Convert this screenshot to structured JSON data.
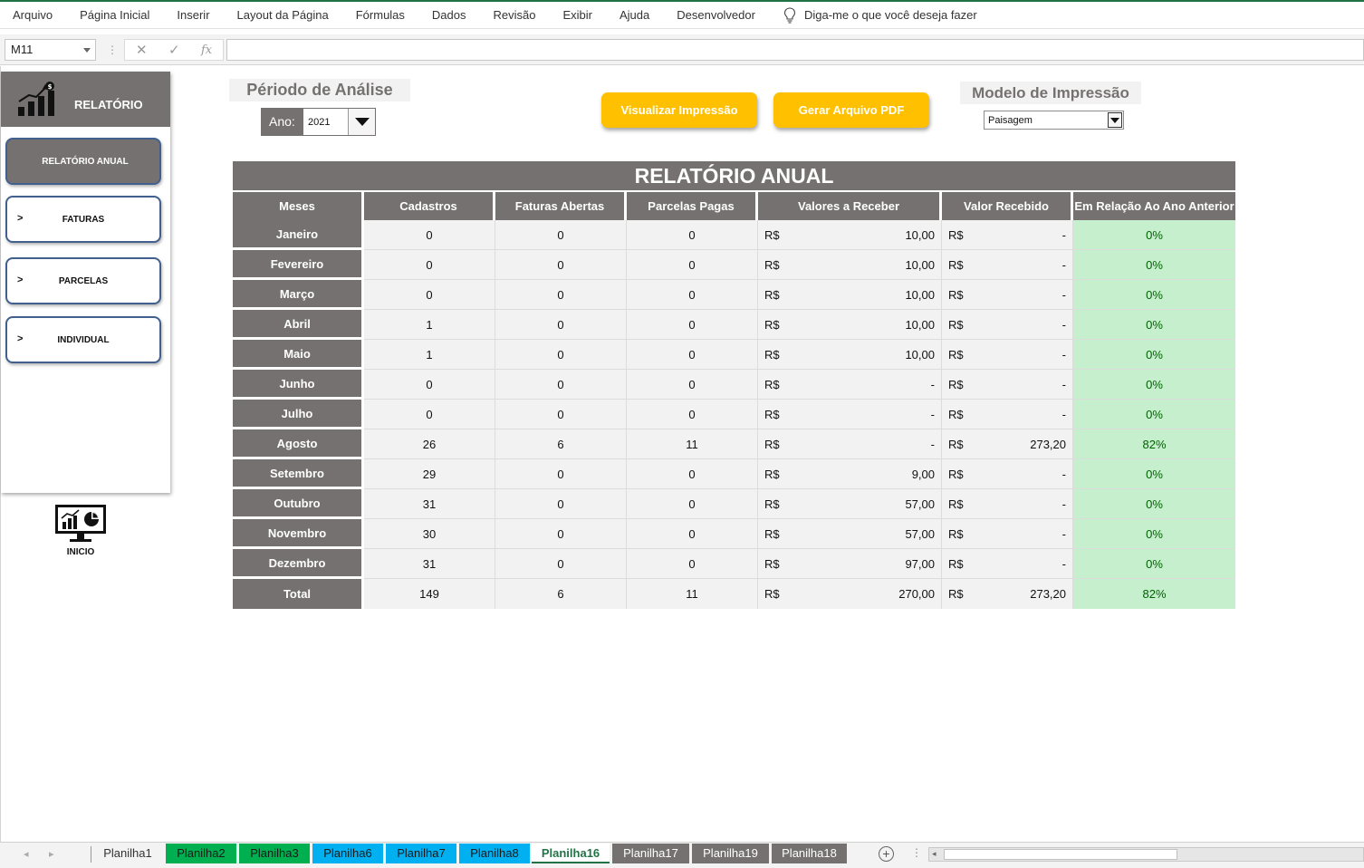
{
  "ribbon": {
    "tabs": [
      "Arquivo",
      "Página Inicial",
      "Inserir",
      "Layout da Página",
      "Fórmulas",
      "Dados",
      "Revisão",
      "Exibir",
      "Ajuda",
      "Desenvolvedor"
    ],
    "tell_me": "Diga-me o que você deseja fazer"
  },
  "formula_bar": {
    "name_box": "M11",
    "fx": "fx",
    "value": ""
  },
  "menu": {
    "header": "RELATÓRIO",
    "items": [
      {
        "label": "RELATÓRIO ANUAL",
        "arrow": ""
      },
      {
        "label": "FATURAS",
        "arrow": ">"
      },
      {
        "label": "PARCELAS",
        "arrow": ">"
      },
      {
        "label": "INDIVIDUAL",
        "arrow": ">"
      }
    ],
    "inicio": "INICIO"
  },
  "controls": {
    "period_title": "Périodo de Análise",
    "ano_label": "Ano:",
    "ano_value": "2021",
    "btn_preview": "Visualizar Impressão",
    "btn_pdf": "Gerar Arquivo PDF",
    "model_title": "Modelo de Impressão",
    "model_value": "Paisagem"
  },
  "report": {
    "title": "RELATÓRIO ANUAL",
    "headers": [
      "Meses",
      "Cadastros",
      "Faturas Abertas",
      "Parcelas Pagas",
      "Valores a Receber",
      "Valor Recebido",
      "Em Relação Ao Ano Anterior"
    ],
    "currency": "R$",
    "rows": [
      {
        "mes": "Janeiro",
        "cadastros": "0",
        "faturas": "0",
        "parcelas": "0",
        "receber": "10,00",
        "recebido": "-",
        "rel": "0%"
      },
      {
        "mes": "Fevereiro",
        "cadastros": "0",
        "faturas": "0",
        "parcelas": "0",
        "receber": "10,00",
        "recebido": "-",
        "rel": "0%"
      },
      {
        "mes": "Março",
        "cadastros": "0",
        "faturas": "0",
        "parcelas": "0",
        "receber": "10,00",
        "recebido": "-",
        "rel": "0%"
      },
      {
        "mes": "Abril",
        "cadastros": "1",
        "faturas": "0",
        "parcelas": "0",
        "receber": "10,00",
        "recebido": "-",
        "rel": "0%"
      },
      {
        "mes": "Maio",
        "cadastros": "1",
        "faturas": "0",
        "parcelas": "0",
        "receber": "10,00",
        "recebido": "-",
        "rel": "0%"
      },
      {
        "mes": "Junho",
        "cadastros": "0",
        "faturas": "0",
        "parcelas": "0",
        "receber": "-",
        "recebido": "-",
        "rel": "0%"
      },
      {
        "mes": "Julho",
        "cadastros": "0",
        "faturas": "0",
        "parcelas": "0",
        "receber": "-",
        "recebido": "-",
        "rel": "0%"
      },
      {
        "mes": "Agosto",
        "cadastros": "26",
        "faturas": "6",
        "parcelas": "11",
        "receber": "-",
        "recebido": "273,20",
        "rel": "82%"
      },
      {
        "mes": "Setembro",
        "cadastros": "29",
        "faturas": "0",
        "parcelas": "0",
        "receber": "9,00",
        "recebido": "-",
        "rel": "0%"
      },
      {
        "mes": "Outubro",
        "cadastros": "31",
        "faturas": "0",
        "parcelas": "0",
        "receber": "57,00",
        "recebido": "-",
        "rel": "0%"
      },
      {
        "mes": "Novembro",
        "cadastros": "30",
        "faturas": "0",
        "parcelas": "0",
        "receber": "57,00",
        "recebido": "-",
        "rel": "0%"
      },
      {
        "mes": "Dezembro",
        "cadastros": "31",
        "faturas": "0",
        "parcelas": "0",
        "receber": "97,00",
        "recebido": "-",
        "rel": "0%"
      },
      {
        "mes": "Total",
        "cadastros": "149",
        "faturas": "6",
        "parcelas": "11",
        "receber": "270,00",
        "recebido": "273,20",
        "rel": "82%"
      }
    ]
  },
  "sheet_tabs": [
    {
      "name": "Planilha1",
      "color": "#f3f3f3",
      "text": "#333333"
    },
    {
      "name": "Planilha2",
      "color": "#00b050",
      "text": "#1a1a1a"
    },
    {
      "name": "Planilha3",
      "color": "#00b050",
      "text": "#1a1a1a"
    },
    {
      "name": "Planilha6",
      "color": "#00b0f0",
      "text": "#1a1a1a"
    },
    {
      "name": "Planilha7",
      "color": "#00b0f0",
      "text": "#1a1a1a"
    },
    {
      "name": "Planilha8",
      "color": "#00b0f0",
      "text": "#1a1a1a"
    },
    {
      "name": "Planilha16",
      "color": "#ffffff",
      "text": "#217346",
      "active": true
    },
    {
      "name": "Planilha17",
      "color": "#767171",
      "text": "#ffffff"
    },
    {
      "name": "Planilha19",
      "color": "#767171",
      "text": "#ffffff"
    },
    {
      "name": "Planilha18",
      "color": "#767171",
      "text": "#ffffff"
    }
  ],
  "icons": {
    "report_icon": "chart-growth-dollar-icon",
    "inicio_icon": "monitor-dashboard-icon",
    "tell_me_icon": "lightbulb-icon"
  }
}
